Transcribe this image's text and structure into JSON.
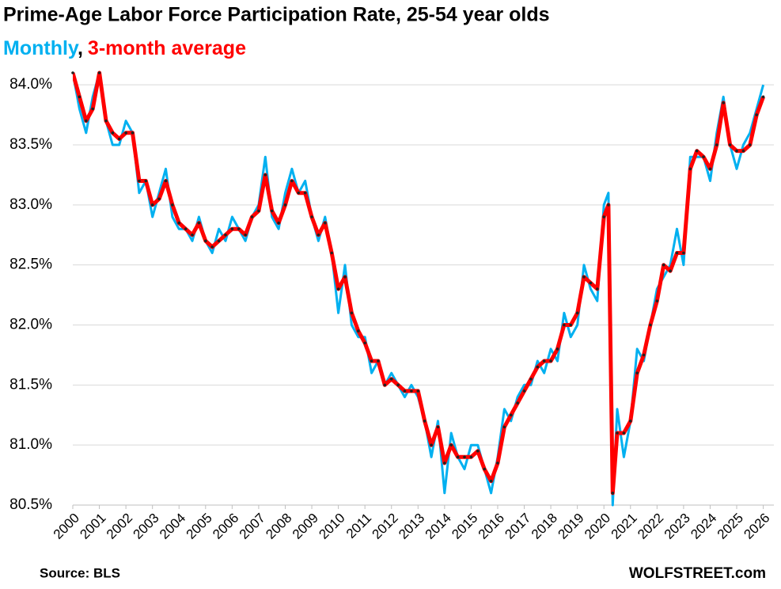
{
  "chart_data": {
    "type": "line",
    "title": "Prime-Age Labor Force Participation Rate, 25-54 year olds",
    "legend_separator": ",",
    "source": "Source: BLS",
    "credit": "WOLFSTREET.com",
    "x": [
      2000,
      2000.25,
      2000.5,
      2000.75,
      2001,
      2001.25,
      2001.5,
      2001.75,
      2002,
      2002.25,
      2002.5,
      2002.75,
      2003,
      2003.25,
      2003.5,
      2003.75,
      2004,
      2004.25,
      2004.5,
      2004.75,
      2005,
      2005.25,
      2005.5,
      2005.75,
      2006,
      2006.25,
      2006.5,
      2006.75,
      2007,
      2007.25,
      2007.5,
      2007.75,
      2008,
      2008.25,
      2008.5,
      2008.75,
      2009,
      2009.25,
      2009.5,
      2009.75,
      2010,
      2010.25,
      2010.5,
      2010.75,
      2011,
      2011.25,
      2011.5,
      2011.75,
      2012,
      2012.25,
      2012.5,
      2012.75,
      2013,
      2013.25,
      2013.5,
      2013.75,
      2014,
      2014.25,
      2014.5,
      2014.75,
      2015,
      2015.25,
      2015.5,
      2015.75,
      2016,
      2016.25,
      2016.5,
      2016.75,
      2017,
      2017.25,
      2017.5,
      2017.75,
      2018,
      2018.25,
      2018.5,
      2018.75,
      2019,
      2019.25,
      2019.5,
      2019.75,
      2020,
      2020.17,
      2020.33,
      2020.5,
      2020.75,
      2021,
      2021.25,
      2021.5,
      2021.75,
      2022,
      2022.25,
      2022.5,
      2022.75,
      2023,
      2023.25,
      2023.5,
      2023.75,
      2024,
      2024.25,
      2024.5,
      2024.75,
      2025,
      2025.25,
      2025.5,
      2025.75,
      2026
    ],
    "series": [
      {
        "name": "Monthly",
        "color": "#00b0f0",
        "values": [
          84.1,
          83.8,
          83.6,
          83.9,
          84.1,
          83.7,
          83.5,
          83.5,
          83.7,
          83.6,
          83.1,
          83.2,
          82.9,
          83.1,
          83.3,
          82.9,
          82.8,
          82.8,
          82.7,
          82.9,
          82.7,
          82.6,
          82.8,
          82.7,
          82.9,
          82.8,
          82.7,
          82.9,
          83.0,
          83.4,
          82.9,
          82.8,
          83.1,
          83.3,
          83.1,
          83.2,
          82.9,
          82.7,
          82.9,
          82.6,
          82.1,
          82.5,
          82.0,
          81.9,
          81.9,
          81.6,
          81.7,
          81.5,
          81.6,
          81.5,
          81.4,
          81.5,
          81.4,
          81.2,
          80.9,
          81.2,
          80.6,
          81.1,
          80.9,
          80.8,
          81.0,
          81.0,
          80.8,
          80.6,
          80.9,
          81.3,
          81.2,
          81.4,
          81.5,
          81.5,
          81.7,
          81.6,
          81.8,
          81.7,
          82.1,
          81.9,
          82.0,
          82.5,
          82.3,
          82.2,
          83.0,
          83.1,
          80.5,
          81.3,
          80.9,
          81.2,
          81.8,
          81.7,
          82.0,
          82.3,
          82.4,
          82.5,
          82.8,
          82.5,
          83.4,
          83.4,
          83.4,
          83.2,
          83.6,
          83.9,
          83.5,
          83.3,
          83.5,
          83.6,
          83.8,
          84.0
        ]
      },
      {
        "name": "3-month average",
        "color": "#ff0000",
        "marker_color": "#222222",
        "values": [
          84.1,
          83.9,
          83.7,
          83.8,
          84.1,
          83.7,
          83.6,
          83.55,
          83.6,
          83.6,
          83.2,
          83.2,
          83.0,
          83.05,
          83.2,
          83.0,
          82.85,
          82.8,
          82.75,
          82.85,
          82.7,
          82.65,
          82.7,
          82.75,
          82.8,
          82.8,
          82.75,
          82.9,
          82.95,
          83.25,
          82.95,
          82.85,
          83.0,
          83.2,
          83.1,
          83.1,
          82.9,
          82.75,
          82.85,
          82.6,
          82.3,
          82.4,
          82.1,
          81.95,
          81.85,
          81.7,
          81.7,
          81.5,
          81.55,
          81.5,
          81.45,
          81.45,
          81.45,
          81.2,
          81.0,
          81.15,
          80.85,
          81.0,
          80.9,
          80.9,
          80.9,
          80.95,
          80.8,
          80.7,
          80.85,
          81.15,
          81.25,
          81.35,
          81.45,
          81.55,
          81.65,
          81.7,
          81.7,
          81.8,
          82.0,
          82.0,
          82.1,
          82.4,
          82.35,
          82.3,
          82.9,
          83.0,
          80.6,
          81.1,
          81.1,
          81.2,
          81.6,
          81.75,
          82.0,
          82.2,
          82.5,
          82.45,
          82.6,
          82.6,
          83.3,
          83.45,
          83.4,
          83.3,
          83.5,
          83.85,
          83.5,
          83.45,
          83.45,
          83.5,
          83.75,
          83.9
        ]
      }
    ],
    "xlim": [
      2000,
      2026.4
    ],
    "xticks": [
      2000,
      2001,
      2002,
      2003,
      2004,
      2005,
      2006,
      2007,
      2008,
      2009,
      2010,
      2011,
      2012,
      2013,
      2014,
      2015,
      2016,
      2017,
      2018,
      2019,
      2020,
      2021,
      2022,
      2023,
      2024,
      2025,
      2026
    ],
    "ylim": [
      80.5,
      84.1
    ],
    "yticks": [
      {
        "value": 80.5,
        "label": "80.5%"
      },
      {
        "value": 81,
        "label": "81.0%"
      },
      {
        "value": 81.5,
        "label": "81.5%"
      },
      {
        "value": 82,
        "label": "82.0%"
      },
      {
        "value": 82.5,
        "label": "82.5%"
      },
      {
        "value": 83,
        "label": "83.0%"
      },
      {
        "value": 83.5,
        "label": "83.5%"
      },
      {
        "value": 84,
        "label": "84.0%"
      }
    ],
    "grid": true
  }
}
